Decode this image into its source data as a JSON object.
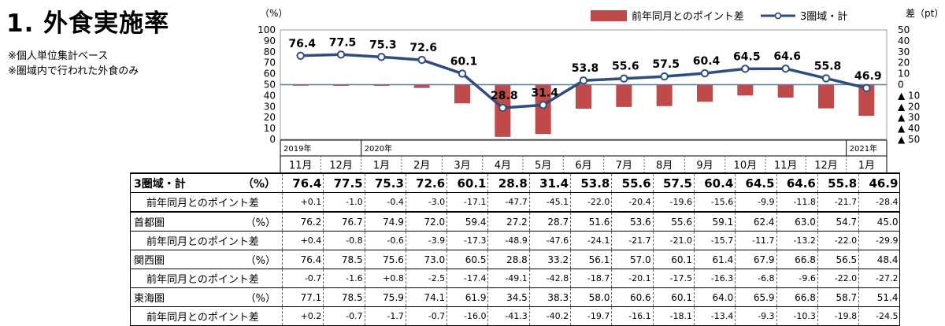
{
  "page": {
    "title": "1. 外食実施率",
    "notes": [
      "※個人単位集計ベース",
      "※圏域内で行われた外食のみ"
    ]
  },
  "colors": {
    "line": "#2f4d7e",
    "bar": "#c0494a",
    "zero": "#4f81bd"
  },
  "chart_data": {
    "type": "bar+line",
    "left_axis": {
      "label": "（%）",
      "ticks": [
        "100",
        "90",
        "80",
        "70",
        "60",
        "50",
        "40",
        "30",
        "20",
        "10",
        "0"
      ],
      "range": [
        0,
        100
      ]
    },
    "right_axis": {
      "label": "差（pt）",
      "ticks": [
        "50",
        "40",
        "30",
        "20",
        "10",
        "0",
        "▲ 10",
        "▲ 20",
        "▲ 30",
        "▲ 40",
        "▲ 50"
      ],
      "range": [
        -50,
        50
      ]
    },
    "legend": [
      "前年同月とのポイント差",
      "3圏域・計"
    ],
    "year_labels": [
      "2019年",
      "",
      "2020年",
      "",
      "",
      "",
      "",
      "",
      "",
      "",
      "",
      "",
      "",
      "",
      "2021年"
    ],
    "months": [
      "11月",
      "12月",
      "1月",
      "2月",
      "3月",
      "4月",
      "5月",
      "6月",
      "7月",
      "8月",
      "9月",
      "10月",
      "11月",
      "12月",
      "1月"
    ],
    "line_values": [
      76.4,
      77.5,
      75.3,
      72.6,
      60.1,
      28.8,
      31.4,
      53.8,
      55.6,
      57.5,
      60.4,
      64.5,
      64.6,
      55.8,
      46.9
    ],
    "line_labels": [
      "76.4",
      "77.5",
      "75.3",
      "72.6",
      "60.1",
      "28.8",
      "31.4",
      "53.8",
      "55.6",
      "57.5",
      "60.4",
      "64.5",
      "64.6",
      "55.8",
      "46.9"
    ],
    "bar_values": [
      0.1,
      -1.0,
      -0.4,
      -3.0,
      -17.1,
      -47.7,
      -45.1,
      -22.0,
      -20.4,
      -19.6,
      -15.6,
      -9.9,
      -11.8,
      -21.7,
      -28.4
    ]
  },
  "table": {
    "rows": [
      {
        "kind": "main",
        "label": "3圏域・計",
        "unit": "（%）",
        "values": [
          "76.4",
          "77.5",
          "75.3",
          "72.6",
          "60.1",
          "28.8",
          "31.4",
          "53.8",
          "55.6",
          "57.5",
          "60.4",
          "64.5",
          "64.6",
          "55.8",
          "46.9"
        ]
      },
      {
        "kind": "diff",
        "label": "前年同月とのポイント差",
        "unit": "",
        "values": [
          "+0.1",
          "-1.0",
          "-0.4",
          "-3.0",
          "-17.1",
          "-47.7",
          "-45.1",
          "-22.0",
          "-20.4",
          "-19.6",
          "-15.6",
          "-9.9",
          "-11.8",
          "-21.7",
          "-28.4"
        ]
      },
      {
        "kind": "reg",
        "label": "首都圏",
        "unit": "（%）",
        "values": [
          "76.2",
          "76.7",
          "74.9",
          "72.0",
          "59.4",
          "27.2",
          "28.7",
          "51.6",
          "53.6",
          "55.6",
          "59.1",
          "62.4",
          "63.0",
          "54.7",
          "45.0"
        ]
      },
      {
        "kind": "diff",
        "label": "前年同月とのポイント差",
        "unit": "",
        "values": [
          "+0.4",
          "-0.8",
          "-0.6",
          "-3.9",
          "-17.3",
          "-48.9",
          "-47.6",
          "-24.1",
          "-21.7",
          "-21.0",
          "-15.7",
          "-11.7",
          "-13.2",
          "-22.0",
          "-29.9"
        ]
      },
      {
        "kind": "reg",
        "label": "関西圏",
        "unit": "（%）",
        "values": [
          "76.4",
          "78.5",
          "75.6",
          "73.0",
          "60.5",
          "28.8",
          "33.2",
          "56.1",
          "57.0",
          "60.1",
          "61.4",
          "67.9",
          "66.8",
          "56.5",
          "48.4"
        ]
      },
      {
        "kind": "diff",
        "label": "前年同月とのポイント差",
        "unit": "",
        "values": [
          "-0.7",
          "-1.6",
          "+0.8",
          "-2.5",
          "-17.4",
          "-49.1",
          "-42.8",
          "-18.7",
          "-20.1",
          "-17.5",
          "-16.3",
          "-6.8",
          "-9.6",
          "-22.0",
          "-27.2"
        ]
      },
      {
        "kind": "reg",
        "label": "東海圏",
        "unit": "（%）",
        "values": [
          "77.1",
          "78.5",
          "75.9",
          "74.1",
          "61.9",
          "34.5",
          "38.3",
          "58.0",
          "60.6",
          "60.1",
          "64.0",
          "65.9",
          "66.8",
          "58.7",
          "51.4"
        ]
      },
      {
        "kind": "diff",
        "label": "前年同月とのポイント差",
        "unit": "",
        "values": [
          "+0.2",
          "-0.7",
          "-1.7",
          "-0.7",
          "-16.0",
          "-41.3",
          "-40.2",
          "-19.7",
          "-16.1",
          "-18.1",
          "-13.4",
          "-9.3",
          "-10.3",
          "-19.8",
          "-24.5"
        ]
      }
    ]
  }
}
